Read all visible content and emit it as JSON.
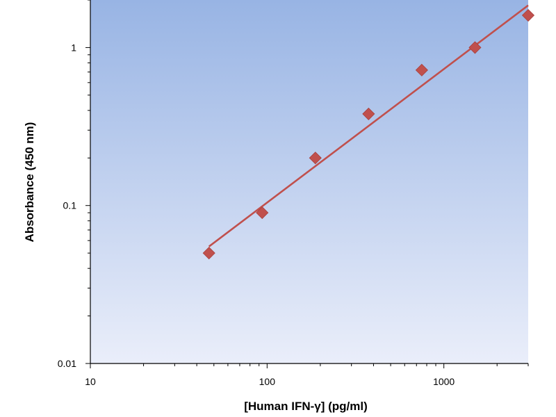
{
  "chart_data": {
    "type": "scatter",
    "title": "",
    "xlabel": "[Human IFN-γ] (pg/ml)",
    "ylabel": "Absorbance (450 nm)",
    "x_scale": "log",
    "y_scale": "log",
    "xlim": [
      10,
      3000
    ],
    "ylim": [
      0.01,
      2
    ],
    "x_ticks": [
      10,
      100,
      1000
    ],
    "x_tick_labels": [
      "10",
      "100",
      "1000"
    ],
    "y_ticks": [
      0.01,
      0.1,
      1
    ],
    "y_tick_labels": [
      "0.01",
      "0.1",
      "1"
    ],
    "grid": false,
    "legend": "none",
    "series": [
      {
        "marker": "diamond",
        "color": "#c0504d",
        "x": [
          46.9,
          93.8,
          187.5,
          375,
          750,
          1500,
          3000
        ],
        "y": [
          0.05,
          0.09,
          0.2,
          0.38,
          0.72,
          1.0,
          1.6
        ]
      }
    ],
    "fit": {
      "color": "#c0504d",
      "x": [
        46.9,
        3000
      ],
      "y": [
        0.055,
        1.85
      ]
    },
    "background_gradient": [
      "#98b4e4",
      "#eaeefa"
    ]
  }
}
